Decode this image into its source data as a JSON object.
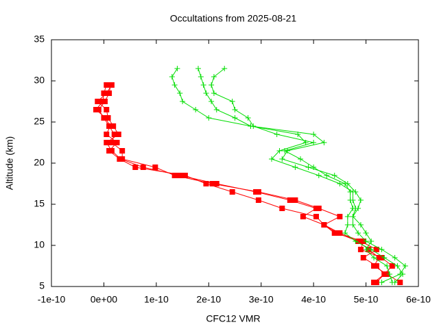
{
  "chart_data": {
    "type": "line",
    "title": "Occultations from 2025-08-21",
    "x_label": "CFC12 VMR",
    "y_label": "Altitude (km)",
    "xlim": [
      -1e-10,
      6e-10
    ],
    "ylim": [
      5,
      35
    ],
    "xticks": [
      -1e-10,
      {
        "value": 0,
        "label": "0e+00"
      },
      1e-10,
      2e-10,
      3e-10,
      4e-10,
      5e-10,
      6e-10
    ],
    "yticks": [
      5,
      10,
      15,
      20,
      25,
      30,
      35
    ],
    "grid": false,
    "series": [
      {
        "color": "#ff0000",
        "marker": "square",
        "x": [
          1.3e-11,
          1e-11,
          2e-12,
          -1e-11,
          0.0,
          1e-11,
          2e-11,
          1.5e-11,
          3.5e-11,
          3.5e-11,
          9.8e-11,
          1.35e-10,
          2.07e-10,
          2.95e-10,
          3.65e-10,
          4.1e-10,
          4.5e-10,
          4.2e-10,
          4.45e-10,
          4.85e-10,
          5.05e-10,
          5.25e-10,
          5.15e-10,
          5.4e-10,
          5.65e-10
        ],
        "values": [
          29.5,
          28.5,
          27.5,
          26.5,
          25.5,
          24.5,
          23.5,
          22.5,
          21.5,
          20.5,
          19.5,
          18.5,
          17.5,
          16.5,
          15.5,
          14.5,
          13.5,
          12.5,
          11.5,
          10.5,
          9.5,
          8.5,
          7.5,
          6.5,
          5.5
        ]
      },
      {
        "color": "#ff0000",
        "marker": "square",
        "x": [
          1.5e-11,
          5e-12,
          -1.2e-11,
          5e-12,
          8e-12,
          1.8e-11,
          2.8e-11,
          5e-12,
          1.5e-11,
          3.2e-11,
          7.5e-11,
          1.45e-10,
          2.15e-10,
          2.9e-10,
          3.55e-10,
          4.05e-10,
          3.8e-10,
          4.2e-10,
          4.4e-10,
          4.95e-10,
          4.9e-10,
          5.3e-10,
          5.5e-10,
          5.35e-10,
          5.15e-10
        ],
        "values": [
          29.5,
          28.5,
          27.5,
          26.5,
          25.5,
          24.5,
          23.5,
          22.5,
          21.5,
          20.5,
          19.5,
          18.5,
          17.5,
          16.5,
          15.5,
          14.5,
          13.5,
          12.5,
          11.5,
          10.5,
          9.5,
          8.5,
          7.5,
          6.5,
          5.5
        ]
      },
      {
        "color": "#ff0000",
        "marker": "square",
        "x": [
          5e-12,
          0.0,
          -2e-12,
          -1.5e-11,
          3e-12,
          1.2e-11,
          5e-12,
          2.5e-11,
          1e-11,
          3e-11,
          6e-11,
          1.55e-10,
          1.95e-10,
          2.45e-10,
          2.95e-10,
          3.4e-10,
          4.05e-10,
          4.2e-10,
          4.5e-10,
          4.9e-10,
          5.2e-10,
          4.95e-10,
          5.2e-10,
          5.35e-10,
          5.2e-10
        ],
        "values": [
          29.5,
          28.5,
          27.5,
          26.5,
          25.5,
          24.5,
          23.5,
          22.5,
          21.5,
          20.5,
          19.5,
          18.5,
          17.5,
          16.5,
          15.5,
          14.5,
          13.5,
          12.5,
          11.5,
          10.5,
          9.5,
          8.5,
          7.5,
          6.5,
          5.5
        ]
      },
      {
        "color": "#00dd00",
        "marker": "plus",
        "x": [
          1.4e-10,
          1.3e-10,
          1.35e-10,
          1.45e-10,
          1.5e-10,
          1.75e-10,
          2e-10,
          2.8e-10,
          3.7e-10,
          3.85e-10,
          3.35e-10,
          3.2e-10,
          3.65e-10,
          4.1e-10,
          4.5e-10,
          4.75e-10,
          4.75e-10,
          4.8e-10,
          4.75e-10,
          4.75e-10,
          4.85e-10,
          5e-10,
          5.3e-10,
          5.55e-10,
          5.75e-10,
          5.65e-10,
          5.3e-10
        ],
        "values": [
          31.5,
          30.5,
          29.5,
          28.5,
          27.5,
          26.5,
          25.5,
          24.5,
          23.5,
          22.5,
          21.5,
          20.5,
          19.5,
          18.5,
          17.5,
          16.5,
          15.5,
          14.5,
          13.5,
          12.5,
          11.5,
          10.5,
          9.5,
          8.5,
          7.5,
          6.5,
          5.5
        ]
      },
      {
        "color": "#00dd00",
        "marker": "plus",
        "x": [
          1.8e-10,
          1.85e-10,
          1.9e-10,
          1.95e-10,
          2.05e-10,
          2.15e-10,
          2.5e-10,
          2.8e-10,
          4e-10,
          4.2e-10,
          3.5e-10,
          3.4e-10,
          3.9e-10,
          4.4e-10,
          4.65e-10,
          4.8e-10,
          4.9e-10,
          4.85e-10,
          4.75e-10,
          4.9e-10,
          5e-10,
          5.1e-10,
          5e-10,
          5.15e-10,
          5.4e-10,
          5.45e-10,
          5.5e-10
        ],
        "values": [
          31.5,
          30.5,
          29.5,
          28.5,
          27.5,
          26.5,
          25.5,
          24.5,
          23.5,
          22.5,
          21.5,
          20.5,
          19.5,
          18.5,
          17.5,
          16.5,
          15.5,
          14.5,
          13.5,
          12.5,
          11.5,
          10.5,
          9.5,
          8.5,
          7.5,
          6.5,
          5.5
        ]
      },
      {
        "color": "#00dd00",
        "marker": "plus",
        "x": [
          2.3e-10,
          2.1e-10,
          2.05e-10,
          2.1e-10,
          2.45e-10,
          2.5e-10,
          2.75e-10,
          2.85e-10,
          3.3e-10,
          4e-10,
          3.45e-10,
          3.75e-10,
          4e-10,
          4.25e-10,
          4.6e-10,
          4.7e-10,
          4.7e-10,
          4.75e-10,
          4.65e-10,
          4.65e-10,
          4.6e-10,
          4.8e-10,
          5.1e-10,
          5.35e-10,
          5.6e-10,
          5.7e-10,
          5.55e-10
        ],
        "values": [
          31.5,
          30.5,
          29.5,
          28.5,
          27.5,
          26.5,
          25.5,
          24.5,
          23.5,
          22.5,
          21.5,
          20.5,
          19.5,
          18.5,
          17.5,
          16.5,
          15.5,
          14.5,
          13.5,
          12.5,
          11.5,
          10.5,
          9.5,
          8.5,
          7.5,
          6.5,
          5.5
        ]
      }
    ]
  }
}
